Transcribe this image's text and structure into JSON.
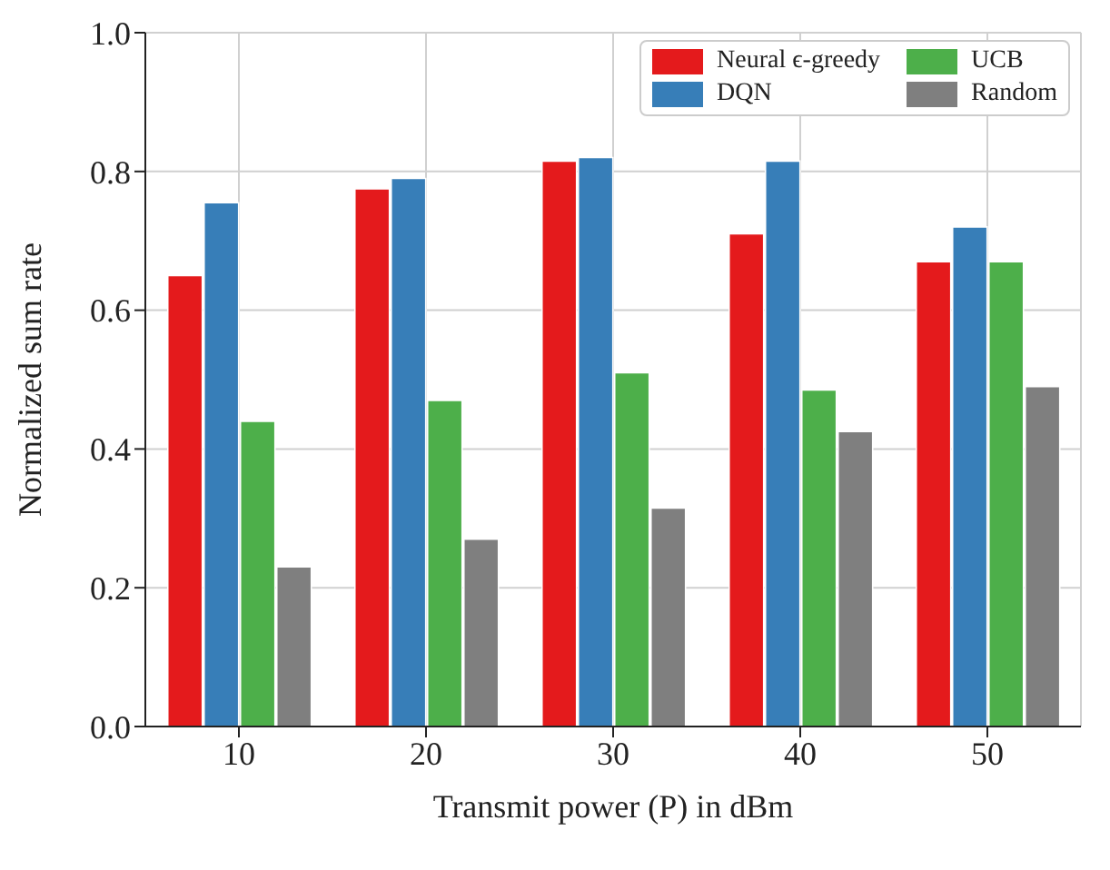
{
  "chart_data": {
    "type": "bar",
    "xlabel": "Transmit power (P) in dBm",
    "ylabel": "Normalized sum rate",
    "categories": [
      "10",
      "20",
      "30",
      "40",
      "50"
    ],
    "series": [
      {
        "name": "Neural ϵ-greedy",
        "color": "#e41a1c",
        "values": [
          0.65,
          0.775,
          0.815,
          0.71,
          0.67
        ]
      },
      {
        "name": "DQN",
        "color": "#377eb8",
        "values": [
          0.755,
          0.79,
          0.82,
          0.815,
          0.72
        ]
      },
      {
        "name": "UCB",
        "color": "#4daf4a",
        "values": [
          0.44,
          0.47,
          0.51,
          0.485,
          0.67
        ]
      },
      {
        "name": "Random",
        "color": "#7f7f7f",
        "values": [
          0.23,
          0.27,
          0.315,
          0.425,
          0.49
        ]
      }
    ],
    "ylim": [
      0,
      1.0
    ],
    "yticks": [
      {
        "value": 0,
        "label": "0.0"
      },
      {
        "value": 0.2,
        "label": "0.2"
      },
      {
        "value": 0.4,
        "label": "0.4"
      },
      {
        "value": 0.6,
        "label": "0.6"
      },
      {
        "value": 0.8,
        "label": "0.8"
      },
      {
        "value": 1.0,
        "label": "1.0"
      }
    ],
    "grid": true,
    "legend": "top right"
  }
}
